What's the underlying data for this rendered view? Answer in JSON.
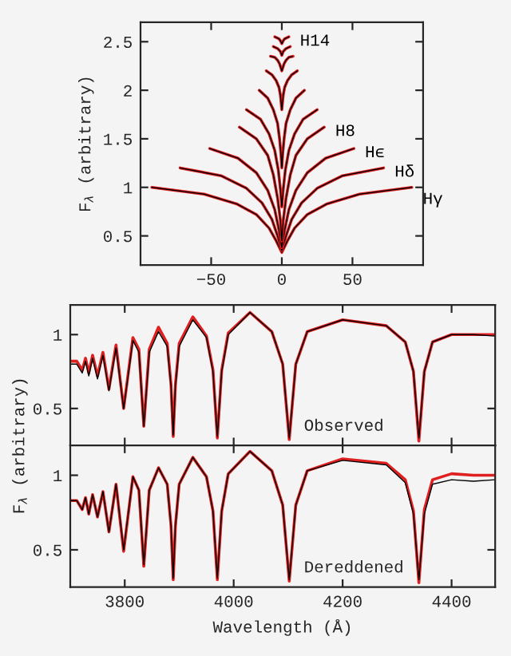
{
  "chart_data": [
    {
      "type": "line",
      "ylabel": "F$_{λ}$ (arbitrary)",
      "xlim": [
        -100,
        100
      ],
      "xticks": [
        {
          "value": -50,
          "label": "−50"
        },
        0,
        50
      ],
      "ylim": [
        0.2,
        2.7
      ],
      "yticks": [
        0.5,
        1,
        1.5,
        2,
        2.5
      ],
      "series": [
        {
          "name": "Hγ",
          "color": "#e02020",
          "x": [
            -92,
            -55,
            -32,
            -18,
            -9,
            -4,
            0,
            4,
            9,
            18,
            32,
            55,
            92
          ],
          "values": [
            1.0,
            0.93,
            0.83,
            0.72,
            0.58,
            0.45,
            0.33,
            0.45,
            0.58,
            0.72,
            0.83,
            0.93,
            1.0
          ]
        },
        {
          "color": "#000000",
          "line_style": "dotted",
          "x": [
            -92,
            -55,
            -32,
            -18,
            -9,
            -4,
            0,
            4,
            9,
            18,
            32,
            55,
            92
          ],
          "values": [
            1.0,
            0.93,
            0.83,
            0.72,
            0.58,
            0.45,
            0.33,
            0.45,
            0.58,
            0.72,
            0.83,
            0.93,
            1.0
          ]
        },
        {
          "name": "Hδ",
          "color": "#e02020",
          "x": [
            -72,
            -43,
            -25,
            -14,
            -7,
            -3,
            0,
            3,
            7,
            14,
            25,
            43,
            72
          ],
          "values": [
            1.2,
            1.12,
            0.99,
            0.84,
            0.67,
            0.5,
            0.35,
            0.5,
            0.67,
            0.84,
            0.99,
            1.12,
            1.2
          ]
        },
        {
          "color": "#000000",
          "line_style": "dotted",
          "x": [
            -72,
            -43,
            -25,
            -14,
            -7,
            -3,
            0,
            3,
            7,
            14,
            25,
            43,
            72
          ],
          "values": [
            1.2,
            1.12,
            0.99,
            0.84,
            0.67,
            0.5,
            0.35,
            0.5,
            0.67,
            0.84,
            0.99,
            1.12,
            1.2
          ]
        },
        {
          "name": "Hϵ",
          "color": "#e02020",
          "x": [
            -51,
            -31,
            -18,
            -10,
            -5,
            -2,
            0,
            2,
            5,
            10,
            18,
            31,
            51
          ],
          "values": [
            1.4,
            1.3,
            1.15,
            0.97,
            0.77,
            0.56,
            0.38,
            0.56,
            0.77,
            0.97,
            1.15,
            1.3,
            1.4
          ]
        },
        {
          "color": "#000000",
          "line_style": "dotted",
          "x": [
            -51,
            -31,
            -18,
            -10,
            -5,
            -2,
            0,
            2,
            5,
            10,
            18,
            31,
            51
          ],
          "values": [
            1.4,
            1.3,
            1.15,
            0.97,
            0.77,
            0.56,
            0.38,
            0.56,
            0.77,
            0.97,
            1.15,
            1.3,
            1.4
          ]
        },
        {
          "name": "H8",
          "color": "#e02020",
          "x": [
            -30,
            -18,
            -10,
            -6,
            -3,
            -1,
            0,
            1,
            3,
            6,
            10,
            18,
            30
          ],
          "values": [
            1.62,
            1.5,
            1.33,
            1.13,
            0.89,
            0.66,
            0.45,
            0.66,
            0.89,
            1.13,
            1.33,
            1.5,
            1.62
          ]
        },
        {
          "color": "#000000",
          "line_style": "dotted",
          "x": [
            -30,
            -18,
            -10,
            -6,
            -3,
            -1,
            0,
            1,
            3,
            6,
            10,
            18,
            30
          ],
          "values": [
            1.62,
            1.5,
            1.33,
            1.13,
            0.89,
            0.66,
            0.45,
            0.66,
            0.89,
            1.13,
            1.33,
            1.5,
            1.62
          ]
        },
        {
          "color": "#e02020",
          "x": [
            -25,
            -15,
            -9,
            -5,
            -2.5,
            -1,
            0,
            1,
            2.5,
            5,
            9,
            15,
            25
          ],
          "values": [
            1.8,
            1.7,
            1.55,
            1.38,
            1.18,
            0.98,
            0.8,
            0.98,
            1.18,
            1.38,
            1.55,
            1.7,
            1.8
          ]
        },
        {
          "color": "#000000",
          "line_style": "dotted",
          "x": [
            -25,
            -15,
            -9,
            -5,
            -2.5,
            -1,
            0,
            1,
            2.5,
            5,
            9,
            15,
            25
          ],
          "values": [
            1.8,
            1.7,
            1.55,
            1.38,
            1.18,
            0.98,
            0.8,
            0.98,
            1.18,
            1.38,
            1.55,
            1.7,
            1.8
          ]
        },
        {
          "color": "#e02020",
          "x": [
            -16,
            -10,
            -6,
            -3,
            -1.6,
            -0.6,
            0,
            0.6,
            1.6,
            3,
            6,
            10,
            16
          ],
          "values": [
            2.0,
            1.92,
            1.8,
            1.66,
            1.5,
            1.34,
            1.2,
            1.34,
            1.5,
            1.66,
            1.8,
            1.92,
            2.0
          ]
        },
        {
          "color": "#000000",
          "line_style": "dotted",
          "x": [
            -16,
            -10,
            -6,
            -3,
            -1.6,
            -0.6,
            0,
            0.6,
            1.6,
            3,
            6,
            10,
            16
          ],
          "values": [
            2.0,
            1.92,
            1.8,
            1.66,
            1.5,
            1.34,
            1.2,
            1.34,
            1.5,
            1.66,
            1.8,
            1.92,
            2.0
          ]
        },
        {
          "color": "#e02020",
          "x": [
            -11,
            -7,
            -4,
            -2,
            -1,
            0,
            1,
            2,
            4,
            7,
            11
          ],
          "values": [
            2.2,
            2.16,
            2.1,
            2.03,
            1.95,
            1.8,
            1.95,
            2.03,
            2.1,
            2.16,
            2.2
          ]
        },
        {
          "color": "#000000",
          "line_style": "dotted",
          "x": [
            -11,
            -7,
            -4,
            -2,
            -1,
            0,
            1,
            2,
            4,
            7,
            11
          ],
          "values": [
            2.2,
            2.16,
            2.1,
            2.03,
            1.95,
            1.8,
            1.95,
            2.03,
            2.1,
            2.16,
            2.2
          ]
        },
        {
          "color": "#e02020",
          "x": [
            -8,
            -5,
            -3,
            -1.5,
            0,
            1.5,
            3,
            5,
            8
          ],
          "values": [
            2.35,
            2.34,
            2.31,
            2.27,
            2.2,
            2.27,
            2.31,
            2.34,
            2.35
          ]
        },
        {
          "color": "#000000",
          "line_style": "dotted",
          "x": [
            -8,
            -5,
            -3,
            -1.5,
            0,
            1.5,
            3,
            5,
            8
          ],
          "values": [
            2.35,
            2.34,
            2.31,
            2.27,
            2.2,
            2.27,
            2.31,
            2.34,
            2.35
          ]
        },
        {
          "color": "#e02020",
          "x": [
            -6,
            -3,
            -1,
            0,
            1,
            3,
            6
          ],
          "values": [
            2.45,
            2.43,
            2.4,
            2.36,
            2.4,
            2.43,
            2.45
          ]
        },
        {
          "color": "#000000",
          "line_style": "dotted",
          "x": [
            -6,
            -3,
            -1,
            0,
            1,
            3,
            6
          ],
          "values": [
            2.45,
            2.43,
            2.4,
            2.36,
            2.4,
            2.43,
            2.45
          ]
        },
        {
          "name": "H14",
          "color": "#e02020",
          "x": [
            -5,
            -2,
            -1,
            0,
            1,
            2,
            5
          ],
          "values": [
            2.55,
            2.53,
            2.51,
            2.48,
            2.51,
            2.53,
            2.55
          ]
        },
        {
          "color": "#000000",
          "line_style": "dotted",
          "x": [
            -5,
            -2,
            -1,
            0,
            1,
            2,
            5
          ],
          "values": [
            2.55,
            2.53,
            2.51,
            2.48,
            2.51,
            2.53,
            2.55
          ]
        }
      ]
    },
    {
      "type": "line",
      "xlim": [
        3700,
        4480
      ],
      "xticks": [
        3800,
        4000,
        4200,
        4400
      ],
      "ylim": [
        0.25,
        1.2
      ],
      "yticks": [
        0.5,
        1
      ],
      "tick_labels": "y",
      "annotations": [
        "Observed"
      ],
      "x": [
        3700,
        3712,
        3722,
        3728,
        3734,
        3741,
        3750,
        3760,
        3771,
        3784,
        3798,
        3815,
        3826,
        3835,
        3845,
        3862,
        3878,
        3885,
        3889,
        3893,
        3900,
        3925,
        3950,
        3962,
        3970,
        3978,
        3990,
        4030,
        4070,
        4090,
        4102,
        4114,
        4135,
        4200,
        4280,
        4315,
        4330,
        4340,
        4350,
        4365,
        4400,
        4440,
        4480
      ],
      "series": [
        {
          "color": "#e02020",
          "values": [
            0.82,
            0.82,
            0.76,
            0.84,
            0.74,
            0.86,
            0.72,
            0.88,
            0.63,
            0.93,
            0.5,
            0.98,
            0.9,
            0.38,
            0.9,
            1.05,
            0.94,
            0.66,
            0.31,
            0.66,
            0.94,
            1.12,
            0.99,
            0.76,
            0.3,
            0.76,
            1.01,
            1.15,
            1.02,
            0.8,
            0.29,
            0.8,
            1.02,
            1.1,
            1.06,
            0.95,
            0.75,
            0.28,
            0.75,
            0.95,
            1.0,
            1.0,
            1.0
          ]
        },
        {
          "color": "#000000",
          "line_style": "solid",
          "values": [
            0.8,
            0.8,
            0.74,
            0.82,
            0.72,
            0.84,
            0.7,
            0.86,
            0.62,
            0.91,
            0.5,
            0.96,
            0.88,
            0.38,
            0.88,
            1.02,
            0.92,
            0.65,
            0.32,
            0.65,
            0.92,
            1.1,
            0.98,
            0.75,
            0.31,
            0.75,
            1.0,
            1.15,
            1.02,
            0.8,
            0.3,
            0.8,
            1.02,
            1.1,
            1.06,
            0.95,
            0.75,
            0.3,
            0.75,
            0.95,
            1.0,
            1.0,
            0.99
          ]
        }
      ]
    },
    {
      "type": "line",
      "xlabel": "Wavelength (Å)",
      "ylabel": "F$_{λ}$ (arbitrary)",
      "xlim": [
        3700,
        4480
      ],
      "xticks": [
        3800,
        4000,
        4200,
        4400
      ],
      "ylim": [
        0.25,
        1.2
      ],
      "yticks": [
        0.5,
        1
      ],
      "annotations": [
        "Dereddened"
      ],
      "x": [
        3700,
        3712,
        3722,
        3728,
        3734,
        3741,
        3750,
        3760,
        3771,
        3784,
        3798,
        3815,
        3826,
        3835,
        3845,
        3862,
        3878,
        3885,
        3889,
        3893,
        3900,
        3925,
        3950,
        3962,
        3970,
        3978,
        3990,
        4030,
        4070,
        4090,
        4102,
        4114,
        4135,
        4200,
        4280,
        4315,
        4330,
        4340,
        4350,
        4365,
        4400,
        4440,
        4480
      ],
      "series": [
        {
          "color": "#e02020",
          "values": [
            0.83,
            0.83,
            0.77,
            0.85,
            0.74,
            0.87,
            0.72,
            0.89,
            0.62,
            0.94,
            0.49,
            0.99,
            0.9,
            0.39,
            0.9,
            1.05,
            0.94,
            0.66,
            0.3,
            0.66,
            0.94,
            1.12,
            0.99,
            0.76,
            0.3,
            0.76,
            1.01,
            1.16,
            1.03,
            0.8,
            0.29,
            0.8,
            1.03,
            1.11,
            1.08,
            0.97,
            0.76,
            0.28,
            0.77,
            0.97,
            1.01,
            1.0,
            1.0
          ]
        },
        {
          "color": "#000000",
          "line_style": "solid",
          "values": [
            0.83,
            0.83,
            0.77,
            0.85,
            0.74,
            0.87,
            0.72,
            0.89,
            0.62,
            0.94,
            0.5,
            0.99,
            0.9,
            0.4,
            0.9,
            1.05,
            0.94,
            0.66,
            0.31,
            0.66,
            0.94,
            1.12,
            0.99,
            0.76,
            0.31,
            0.76,
            1.01,
            1.16,
            1.03,
            0.8,
            0.3,
            0.8,
            1.03,
            1.1,
            1.07,
            0.95,
            0.74,
            0.3,
            0.74,
            0.94,
            0.97,
            0.96,
            0.97
          ]
        }
      ]
    }
  ]
}
